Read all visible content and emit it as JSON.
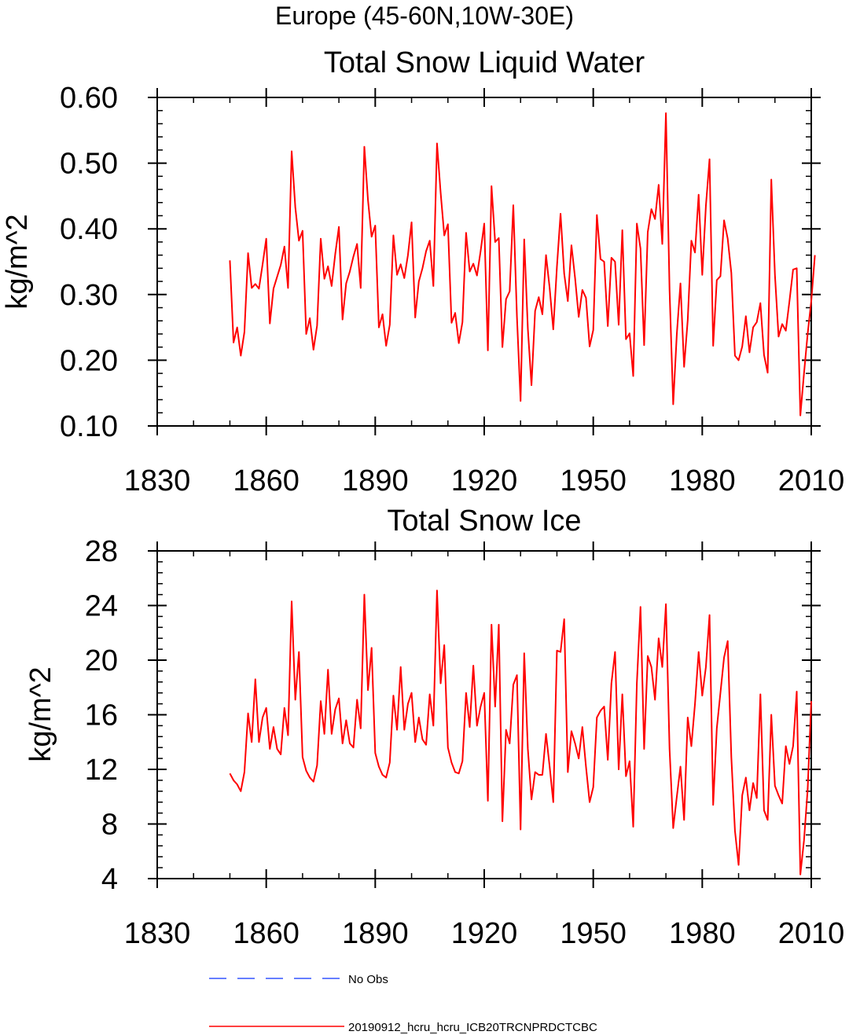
{
  "figure": {
    "title": "Europe (45-60N,10W-30E)"
  },
  "chart_data": [
    {
      "type": "line",
      "title": "Total Snow Liquid Water",
      "xlabel": "",
      "ylabel": "kg/m^2",
      "xlim": [
        1830,
        2010
      ],
      "ylim": [
        0.1,
        0.6
      ],
      "x_ticks": [
        1830,
        1860,
        1890,
        1920,
        1950,
        1980,
        2010
      ],
      "x_tick_labels": [
        "1830",
        "1860",
        "1890",
        "1920",
        "1950",
        "1980",
        "2010"
      ],
      "y_ticks": [
        0.1,
        0.2,
        0.3,
        0.4,
        0.5,
        0.6
      ],
      "y_tick_labels": [
        "0.10",
        "0.20",
        "0.30",
        "0.40",
        "0.50",
        "0.60"
      ],
      "grid": false,
      "series": [
        {
          "name": "20190912_hcru_hcru_ICB20TRCNPRDCTCBC",
          "color": "#ff0000",
          "x_start": 1850,
          "x_step": 1,
          "values": [
            0.352,
            0.227,
            0.25,
            0.207,
            0.243,
            0.363,
            0.31,
            0.316,
            0.309,
            0.346,
            0.385,
            0.256,
            0.309,
            0.327,
            0.345,
            0.373,
            0.31,
            0.518,
            0.433,
            0.382,
            0.397,
            0.24,
            0.264,
            0.216,
            0.253,
            0.385,
            0.324,
            0.343,
            0.313,
            0.362,
            0.403,
            0.262,
            0.317,
            0.335,
            0.358,
            0.377,
            0.31,
            0.525,
            0.444,
            0.388,
            0.405,
            0.25,
            0.27,
            0.222,
            0.254,
            0.39,
            0.33,
            0.346,
            0.325,
            0.36,
            0.41,
            0.265,
            0.32,
            0.34,
            0.366,
            0.382,
            0.313,
            0.53,
            0.455,
            0.39,
            0.407,
            0.257,
            0.272,
            0.226,
            0.258,
            0.394,
            0.335,
            0.347,
            0.329,
            0.366,
            0.408,
            0.215,
            0.465,
            0.38,
            0.386,
            0.22,
            0.293,
            0.305,
            0.436,
            0.266,
            0.138,
            0.384,
            0.248,
            0.162,
            0.275,
            0.296,
            0.27,
            0.36,
            0.31,
            0.247,
            0.342,
            0.423,
            0.332,
            0.29,
            0.375,
            0.325,
            0.266,
            0.307,
            0.295,
            0.221,
            0.246,
            0.421,
            0.354,
            0.35,
            0.252,
            0.356,
            0.35,
            0.254,
            0.398,
            0.232,
            0.241,
            0.176,
            0.408,
            0.37,
            0.223,
            0.395,
            0.43,
            0.415,
            0.467,
            0.377,
            0.576,
            0.307,
            0.133,
            0.24,
            0.317,
            0.19,
            0.261,
            0.382,
            0.364,
            0.452,
            0.33,
            0.435,
            0.506,
            0.222,
            0.322,
            0.328,
            0.413,
            0.385,
            0.333,
            0.207,
            0.2,
            0.221,
            0.267,
            0.212,
            0.25,
            0.258,
            0.287,
            0.208,
            0.181,
            0.475,
            0.33,
            0.236,
            0.255,
            0.245,
            0.29,
            0.338,
            0.34,
            0.116,
            0.18,
            0.24,
            0.29,
            0.36
          ]
        }
      ]
    },
    {
      "type": "line",
      "title": "Total Snow Ice",
      "xlabel": "",
      "ylabel": "kg/m^2",
      "xlim": [
        1830,
        2010
      ],
      "ylim": [
        4,
        28
      ],
      "x_ticks": [
        1830,
        1860,
        1890,
        1920,
        1950,
        1980,
        2010
      ],
      "x_tick_labels": [
        "1830",
        "1860",
        "1890",
        "1920",
        "1950",
        "1980",
        "2010"
      ],
      "y_ticks": [
        4,
        8,
        12,
        16,
        20,
        24,
        28
      ],
      "y_tick_labels": [
        "4",
        "8",
        "12",
        "16",
        "20",
        "24",
        "28"
      ],
      "grid": false,
      "series": [
        {
          "name": "20190912_hcru_hcru_ICB20TRCNPRDCTCBC",
          "color": "#ff0000",
          "x_start": 1850,
          "x_step": 1,
          "values": [
            11.7,
            11.2,
            10.9,
            10.4,
            11.8,
            16.1,
            14.0,
            18.6,
            14.0,
            15.8,
            16.5,
            13.5,
            15.1,
            13.5,
            13.1,
            16.5,
            14.5,
            24.3,
            17.1,
            20.6,
            12.9,
            11.9,
            11.4,
            11.1,
            12.3,
            17.0,
            14.6,
            19.3,
            14.6,
            16.4,
            17.2,
            13.9,
            15.6,
            13.9,
            13.6,
            17.1,
            15.0,
            24.8,
            17.8,
            20.9,
            13.2,
            12.2,
            11.6,
            11.4,
            12.5,
            17.4,
            14.9,
            19.5,
            14.9,
            16.8,
            17.6,
            14.0,
            15.8,
            14.2,
            13.8,
            17.5,
            15.2,
            25.1,
            18.3,
            21.1,
            13.6,
            12.5,
            11.8,
            11.7,
            12.6,
            17.6,
            15.1,
            19.6,
            15.2,
            16.6,
            17.6,
            9.7,
            22.6,
            16.6,
            22.6,
            8.2,
            14.9,
            13.9,
            18.2,
            18.9,
            7.6,
            20.5,
            13.5,
            9.8,
            11.8,
            11.6,
            11.6,
            14.6,
            12.2,
            9.6,
            20.7,
            20.6,
            23.0,
            11.8,
            14.8,
            13.9,
            12.8,
            15.1,
            12.2,
            9.6,
            10.7,
            15.8,
            16.3,
            16.6,
            12.7,
            18.3,
            20.6,
            12.0,
            17.5,
            11.5,
            12.6,
            7.8,
            18.3,
            23.9,
            13.5,
            20.3,
            19.5,
            17.1,
            21.6,
            19.5,
            24.1,
            13.5,
            7.7,
            10.0,
            12.2,
            8.3,
            15.8,
            13.7,
            16.8,
            20.6,
            17.4,
            19.5,
            23.3,
            9.4,
            15.0,
            17.6,
            20.2,
            21.4,
            12.9,
            7.5,
            5.0,
            10.1,
            11.4,
            9.0,
            11.0,
            9.9,
            17.5,
            9.0,
            8.3,
            16.0,
            10.8,
            10.1,
            9.5,
            13.7,
            12.4,
            13.7,
            17.7,
            4.3,
            6.8,
            10.5,
            17.0
          ]
        }
      ]
    }
  ],
  "legend": {
    "position": "bottom",
    "items": [
      {
        "label": "No Obs",
        "color": "#3355ff",
        "style": "dashed"
      },
      {
        "label": "20190912_hcru_hcru_ICB20TRCNPRDCTCBC",
        "color": "#ff0000",
        "style": "solid"
      }
    ]
  }
}
